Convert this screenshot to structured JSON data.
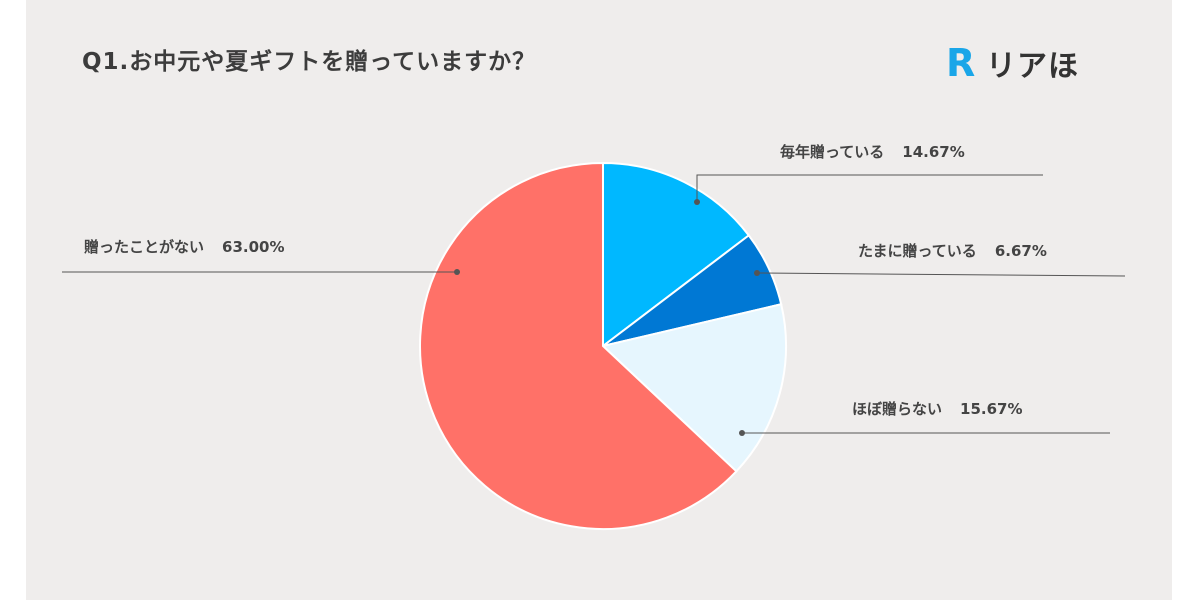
{
  "title": "Q1.お中元や夏ギフトを贈っていますか？",
  "logo": {
    "mark": "R",
    "text": "リアほ",
    "mark_color": "#1aa6e8"
  },
  "chart_data": {
    "type": "pie",
    "slices": [
      {
        "label": "毎年贈っている",
        "value": 14.67,
        "display": "14.67%",
        "color": "#00b8ff"
      },
      {
        "label": "たまに贈っている",
        "value": 6.67,
        "display": "6.67%",
        "color": "#0078d4"
      },
      {
        "label": "ほぼ贈らない",
        "value": 15.67,
        "display": "15.67%",
        "color": "#e6f6fe"
      },
      {
        "label": "贈ったことがない",
        "value": 63.0,
        "display": "63.00%",
        "color": "#ff7168"
      }
    ],
    "start_angle_deg": 0,
    "direction": "clockwise"
  }
}
